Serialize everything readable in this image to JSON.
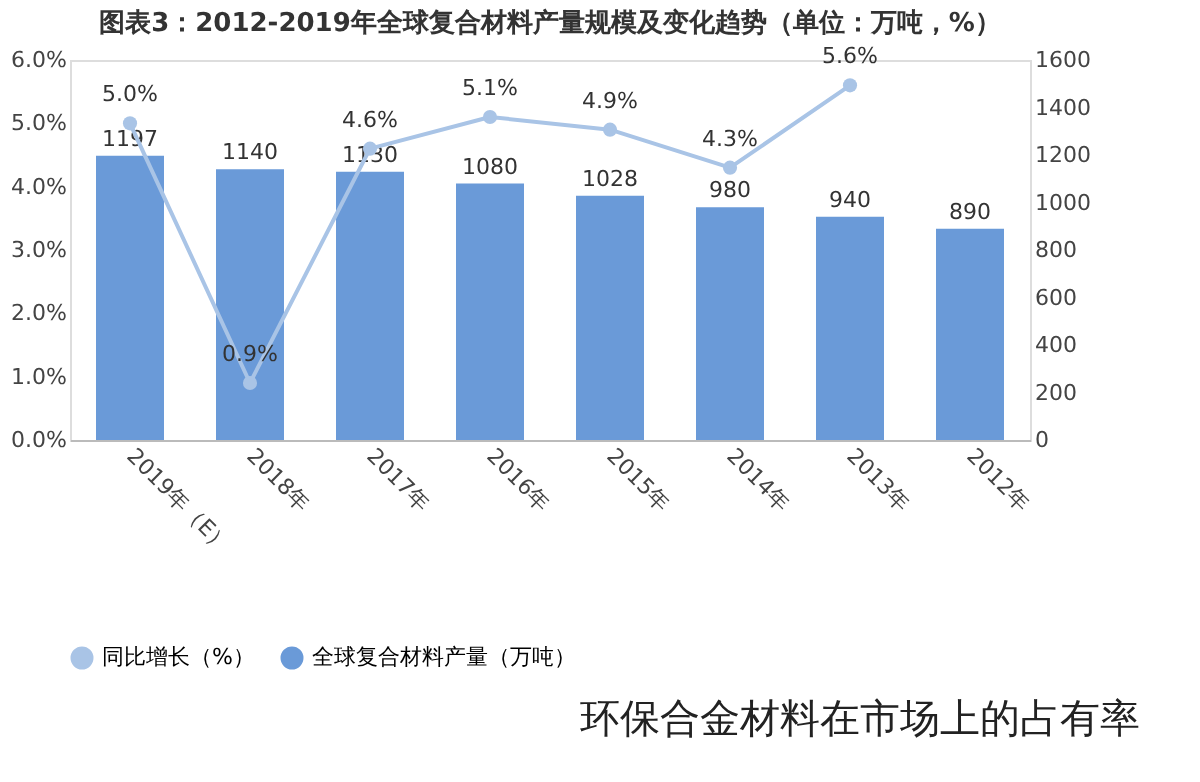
{
  "chart_data": {
    "type": "bar",
    "title": "图表3：2012-2019年全球复合材料产量规模及变化趋势（单位：万吨，%）",
    "categories": [
      "2019年（E）",
      "2018年",
      "2017年",
      "2016年",
      "2015年",
      "2014年",
      "2013年",
      "2012年"
    ],
    "series": [
      {
        "name": "同比增长（%）",
        "type": "line",
        "axis": "y",
        "color": "#a9c4e6",
        "values": [
          5.0,
          0.9,
          4.6,
          5.1,
          4.9,
          4.3,
          5.6,
          null
        ],
        "value_labels": [
          "5.0%",
          "0.9%",
          "4.6%",
          "5.1%",
          "4.9%",
          "4.3%",
          "5.6%",
          null
        ]
      },
      {
        "name": "全球复合材料产量（万吨）",
        "axis": "y2",
        "color": "#6a9ad8",
        "values": [
          1197,
          1140,
          1130,
          1080,
          1028,
          980,
          940,
          890
        ],
        "value_labels": [
          "1197",
          "1140",
          "1130",
          "1080",
          "1028",
          "980",
          "940",
          "890"
        ]
      }
    ],
    "ylim": [
      0,
      6
    ],
    "yticks": [
      {
        "value": 0,
        "label": "0.0%"
      },
      {
        "value": 1,
        "label": "1.0%"
      },
      {
        "value": 2,
        "label": "2.0%"
      },
      {
        "value": 3,
        "label": "3.0%"
      },
      {
        "value": 4,
        "label": "4.0%"
      },
      {
        "value": 5,
        "label": "5.0%"
      },
      {
        "value": 6,
        "label": "6.0%"
      }
    ],
    "y2lim": [
      0,
      1600
    ],
    "y2ticks": [
      0,
      200,
      400,
      600,
      800,
      1000,
      1200,
      1400,
      1600
    ],
    "marker": "circle",
    "grid": false,
    "legend": "bottom",
    "annotations": [
      "环保合金材料在市场上的占有率"
    ]
  }
}
